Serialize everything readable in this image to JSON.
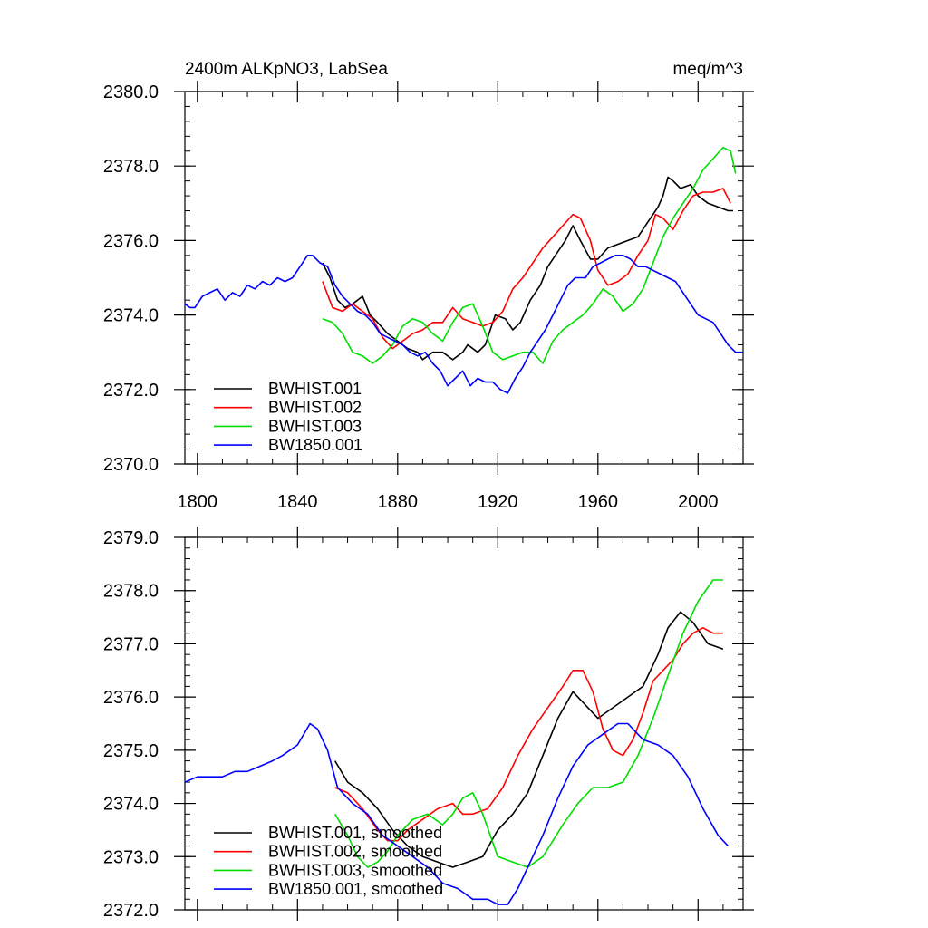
{
  "chart_data": [
    {
      "type": "line",
      "title": "2400m ALKpNO3, LabSea",
      "units": "meq/m^3",
      "xlim": [
        1795,
        2018
      ],
      "ylim": [
        2370.0,
        2380.0
      ],
      "x_ticks": [
        1800,
        1840,
        1880,
        1920,
        1960,
        2000
      ],
      "x_tick_labels": [
        "1800",
        "1840",
        "1880",
        "1920",
        "1960",
        "2000"
      ],
      "y_ticks": [
        2370.0,
        2372.0,
        2374.0,
        2376.0,
        2378.0,
        2380.0
      ],
      "y_tick_labels": [
        "2370.0",
        "2372.0",
        "2374.0",
        "2376.0",
        "2378.0",
        "2380.0"
      ],
      "legend_position": "bottom-left",
      "series": [
        {
          "name": "BWHIST.001",
          "color": "#000000",
          "x": [
            1850,
            1853,
            1856,
            1859,
            1862,
            1866,
            1869,
            1872,
            1876,
            1880,
            1884,
            1888,
            1890,
            1894,
            1898,
            1902,
            1906,
            1908,
            1912,
            1915,
            1919,
            1923,
            1926,
            1929,
            1933,
            1937,
            1940,
            1944,
            1947,
            1950,
            1953,
            1957,
            1960,
            1964,
            1968,
            1972,
            1976,
            1980,
            1984,
            1986,
            1988,
            1990,
            1993,
            1997,
            2000,
            2004,
            2008,
            2012,
            2014
          ],
          "values": [
            2375.4,
            2375.0,
            2374.4,
            2374.2,
            2374.3,
            2374.5,
            2374.0,
            2373.8,
            2373.5,
            2373.3,
            2373.1,
            2373.0,
            2372.8,
            2373.0,
            2373.0,
            2372.8,
            2373.0,
            2373.2,
            2373.0,
            2373.2,
            2374.0,
            2373.9,
            2373.6,
            2373.8,
            2374.4,
            2374.8,
            2375.3,
            2375.7,
            2376.0,
            2376.4,
            2376.0,
            2375.5,
            2375.5,
            2375.8,
            2375.9,
            2376.0,
            2376.1,
            2376.5,
            2376.9,
            2377.2,
            2377.7,
            2377.6,
            2377.4,
            2377.5,
            2377.2,
            2377.0,
            2376.9,
            2376.8,
            2376.8
          ]
        },
        {
          "name": "BWHIST.002",
          "color": "#ff0000",
          "x": [
            1850,
            1854,
            1858,
            1862,
            1866,
            1870,
            1874,
            1878,
            1882,
            1886,
            1890,
            1894,
            1898,
            1902,
            1906,
            1910,
            1914,
            1918,
            1922,
            1926,
            1930,
            1934,
            1938,
            1942,
            1946,
            1950,
            1953,
            1957,
            1960,
            1964,
            1968,
            1972,
            1976,
            1980,
            1983,
            1986,
            1990,
            1994,
            1998,
            2002,
            2006,
            2010,
            2013
          ],
          "values": [
            2374.9,
            2374.2,
            2374.1,
            2374.3,
            2374.1,
            2373.9,
            2373.4,
            2373.1,
            2373.3,
            2373.5,
            2373.6,
            2373.8,
            2373.8,
            2374.2,
            2373.9,
            2373.8,
            2373.7,
            2373.8,
            2374.1,
            2374.7,
            2375.0,
            2375.4,
            2375.8,
            2376.1,
            2376.4,
            2376.7,
            2376.6,
            2376.0,
            2375.2,
            2374.8,
            2374.9,
            2375.1,
            2375.6,
            2376.0,
            2376.7,
            2376.6,
            2376.3,
            2376.8,
            2377.2,
            2377.3,
            2377.3,
            2377.4,
            2377.0
          ]
        },
        {
          "name": "BWHIST.003",
          "color": "#00dd00",
          "x": [
            1850,
            1854,
            1858,
            1862,
            1866,
            1870,
            1874,
            1878,
            1882,
            1886,
            1890,
            1894,
            1898,
            1902,
            1906,
            1910,
            1914,
            1918,
            1922,
            1926,
            1930,
            1934,
            1938,
            1942,
            1946,
            1950,
            1954,
            1958,
            1962,
            1966,
            1970,
            1974,
            1978,
            1982,
            1986,
            1990,
            1994,
            1998,
            2002,
            2006,
            2010,
            2013,
            2015
          ],
          "values": [
            2373.9,
            2373.8,
            2373.5,
            2373.0,
            2372.9,
            2372.7,
            2372.9,
            2373.2,
            2373.7,
            2373.9,
            2373.8,
            2373.5,
            2373.3,
            2373.8,
            2374.2,
            2374.3,
            2373.7,
            2373.0,
            2372.8,
            2372.9,
            2373.0,
            2373.0,
            2372.7,
            2373.3,
            2373.6,
            2373.8,
            2374.0,
            2374.3,
            2374.7,
            2374.5,
            2374.1,
            2374.3,
            2374.7,
            2375.4,
            2376.1,
            2376.6,
            2377.0,
            2377.4,
            2377.9,
            2378.2,
            2378.5,
            2378.4,
            2377.8
          ]
        },
        {
          "name": "BW1850.001",
          "color": "#0000ff",
          "x": [
            1795,
            1797,
            1799,
            1802,
            1805,
            1808,
            1811,
            1814,
            1817,
            1820,
            1823,
            1826,
            1829,
            1832,
            1835,
            1838,
            1841,
            1844,
            1846,
            1849,
            1852,
            1855,
            1858,
            1861,
            1864,
            1867,
            1870,
            1873,
            1876,
            1879,
            1882,
            1885,
            1888,
            1891,
            1894,
            1897,
            1900,
            1903,
            1906,
            1909,
            1912,
            1915,
            1918,
            1921,
            1924,
            1927,
            1930,
            1933,
            1936,
            1939,
            1942,
            1945,
            1948,
            1951,
            1955,
            1958,
            1961,
            1964,
            1967,
            1970,
            1973,
            1976,
            1979,
            1982,
            1985,
            1988,
            1991,
            1994,
            1997,
            2000,
            2003,
            2006,
            2009,
            2012,
            2015,
            2018
          ],
          "values": [
            2374.3,
            2374.2,
            2374.2,
            2374.5,
            2374.6,
            2374.7,
            2374.4,
            2374.6,
            2374.5,
            2374.8,
            2374.7,
            2374.9,
            2374.8,
            2375.0,
            2374.9,
            2375.0,
            2375.3,
            2375.6,
            2375.6,
            2375.4,
            2375.3,
            2374.8,
            2374.5,
            2374.3,
            2374.1,
            2374.0,
            2373.8,
            2373.5,
            2373.4,
            2373.3,
            2373.2,
            2373.0,
            2372.9,
            2373.0,
            2372.7,
            2372.5,
            2372.1,
            2372.3,
            2372.5,
            2372.1,
            2372.3,
            2372.2,
            2372.2,
            2372.0,
            2371.9,
            2372.3,
            2372.6,
            2373.0,
            2373.3,
            2373.6,
            2374.0,
            2374.4,
            2374.8,
            2375.0,
            2375.0,
            2375.3,
            2375.4,
            2375.5,
            2375.6,
            2375.6,
            2375.5,
            2375.3,
            2375.3,
            2375.2,
            2375.1,
            2375.0,
            2374.9,
            2374.6,
            2374.3,
            2374.0,
            2373.9,
            2373.8,
            2373.5,
            2373.2,
            2373.0,
            2373.0
          ]
        }
      ]
    },
    {
      "type": "line",
      "title": "",
      "xlim": [
        1795,
        2018
      ],
      "ylim": [
        2372.0,
        2379.0
      ],
      "x_ticks": [
        1800,
        1840,
        1880,
        1920,
        1960,
        2000
      ],
      "x_tick_labels": [],
      "y_ticks": [
        2372.0,
        2373.0,
        2374.0,
        2375.0,
        2376.0,
        2377.0,
        2378.0,
        2379.0
      ],
      "y_tick_labels": [
        "2372.0",
        "2373.0",
        "2374.0",
        "2375.0",
        "2376.0",
        "2377.0",
        "2378.0",
        "2379.0"
      ],
      "legend_position": "bottom-left",
      "series": [
        {
          "name": "BWHIST.001, smoothed",
          "color": "#000000",
          "x": [
            1855,
            1860,
            1866,
            1872,
            1878,
            1884,
            1890,
            1896,
            1902,
            1908,
            1914,
            1920,
            1926,
            1932,
            1938,
            1944,
            1950,
            1954,
            1960,
            1966,
            1972,
            1978,
            1984,
            1988,
            1993,
            1998,
            2004,
            2010
          ],
          "values": [
            2374.8,
            2374.4,
            2374.2,
            2373.9,
            2373.5,
            2373.2,
            2373.0,
            2372.9,
            2372.8,
            2372.9,
            2373.0,
            2373.5,
            2373.8,
            2374.2,
            2374.9,
            2375.6,
            2376.1,
            2375.9,
            2375.6,
            2375.8,
            2376.0,
            2376.2,
            2376.8,
            2377.3,
            2377.6,
            2377.4,
            2377.0,
            2376.9
          ]
        },
        {
          "name": "BWHIST.002, smoothed",
          "color": "#ff0000",
          "x": [
            1855,
            1860,
            1866,
            1872,
            1876,
            1880,
            1884,
            1890,
            1896,
            1902,
            1906,
            1910,
            1916,
            1922,
            1928,
            1934,
            1940,
            1946,
            1950,
            1954,
            1958,
            1962,
            1966,
            1970,
            1974,
            1978,
            1982,
            1986,
            1990,
            1994,
            1998,
            2002,
            2006,
            2010
          ],
          "values": [
            2374.3,
            2374.2,
            2373.9,
            2373.5,
            2373.3,
            2373.3,
            2373.5,
            2373.7,
            2373.9,
            2374.0,
            2373.8,
            2373.8,
            2373.9,
            2374.3,
            2374.9,
            2375.4,
            2375.8,
            2376.2,
            2376.5,
            2376.5,
            2376.1,
            2375.4,
            2375.0,
            2374.9,
            2375.2,
            2375.7,
            2376.3,
            2376.5,
            2376.7,
            2377.0,
            2377.2,
            2377.3,
            2377.2,
            2377.2
          ]
        },
        {
          "name": "BWHIST.003, smoothed",
          "color": "#00dd00",
          "x": [
            1855,
            1860,
            1864,
            1868,
            1872,
            1876,
            1880,
            1886,
            1892,
            1898,
            1902,
            1906,
            1910,
            1914,
            1920,
            1926,
            1932,
            1938,
            1942,
            1946,
            1952,
            1958,
            1964,
            1970,
            1976,
            1982,
            1988,
            1994,
            2000,
            2006,
            2010
          ],
          "values": [
            2373.8,
            2373.4,
            2373.0,
            2372.8,
            2372.9,
            2373.1,
            2373.4,
            2373.7,
            2373.8,
            2373.6,
            2373.8,
            2374.1,
            2374.2,
            2373.8,
            2373.0,
            2372.9,
            2372.8,
            2373.0,
            2373.3,
            2373.6,
            2374.0,
            2374.3,
            2374.3,
            2374.4,
            2374.9,
            2375.6,
            2376.4,
            2377.2,
            2377.8,
            2378.2,
            2378.2
          ]
        },
        {
          "name": "BW1850.001, smoothed",
          "color": "#0000ff",
          "x": [
            1795,
            1800,
            1805,
            1810,
            1815,
            1820,
            1825,
            1830,
            1834,
            1840,
            1845,
            1848,
            1852,
            1856,
            1862,
            1868,
            1874,
            1880,
            1886,
            1892,
            1898,
            1904,
            1910,
            1916,
            1920,
            1924,
            1928,
            1932,
            1938,
            1944,
            1950,
            1956,
            1962,
            1968,
            1972,
            1978,
            1984,
            1990,
            1996,
            2002,
            2008,
            2012
          ],
          "values": [
            2374.4,
            2374.5,
            2374.5,
            2374.5,
            2374.6,
            2374.6,
            2374.7,
            2374.8,
            2374.9,
            2375.1,
            2375.5,
            2375.4,
            2375.0,
            2374.3,
            2374.0,
            2373.8,
            2373.4,
            2373.2,
            2373.0,
            2372.8,
            2372.5,
            2372.4,
            2372.2,
            2372.2,
            2372.1,
            2372.1,
            2372.4,
            2372.8,
            2373.4,
            2374.1,
            2374.7,
            2375.1,
            2375.3,
            2375.5,
            2375.5,
            2375.2,
            2375.1,
            2374.9,
            2374.5,
            2373.9,
            2373.4,
            2373.2
          ]
        }
      ]
    }
  ]
}
